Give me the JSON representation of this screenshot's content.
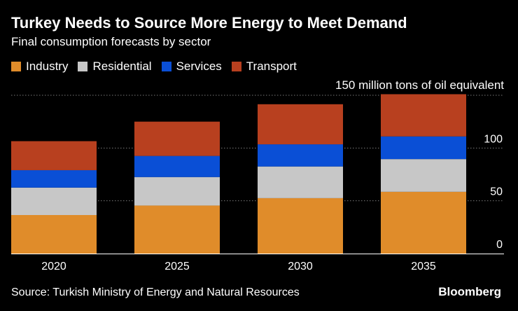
{
  "header": {
    "title": "Turkey Needs to Source More Energy to Meet Demand",
    "subtitle": "Final consumption forecasts by sector"
  },
  "legend": {
    "items": [
      {
        "label": "Industry",
        "color": "#e08c2a"
      },
      {
        "label": "Residential",
        "color": "#c7c7c7"
      },
      {
        "label": "Services",
        "color": "#0a4fd6"
      },
      {
        "label": "Transport",
        "color": "#b8401f"
      }
    ]
  },
  "footer": {
    "source": "Source: Turkish Ministry of Energy and Natural Resources",
    "brand": "Bloomberg"
  },
  "chart_data": {
    "type": "bar",
    "stacked": true,
    "unit_label": "150 million tons of oil equivalent",
    "categories": [
      "2020",
      "2025",
      "2030",
      "2035"
    ],
    "series": [
      {
        "name": "Industry",
        "values": [
          36.5,
          45.5,
          52.5,
          58.5
        ]
      },
      {
        "name": "Residential",
        "values": [
          26,
          27,
          30,
          31
        ]
      },
      {
        "name": "Services",
        "values": [
          16.5,
          20,
          21,
          21.5
        ]
      },
      {
        "name": "Transport",
        "values": [
          27.5,
          32.5,
          38,
          40
        ]
      }
    ],
    "y_ticks": [
      {
        "value": 0,
        "label": "0"
      },
      {
        "value": 50,
        "label": "50"
      },
      {
        "value": 100,
        "label": "100"
      },
      {
        "value": 150,
        "label": ""
      }
    ],
    "ylim": [
      0,
      150
    ],
    "grid": true,
    "xlabel": "",
    "ylabel": ""
  }
}
